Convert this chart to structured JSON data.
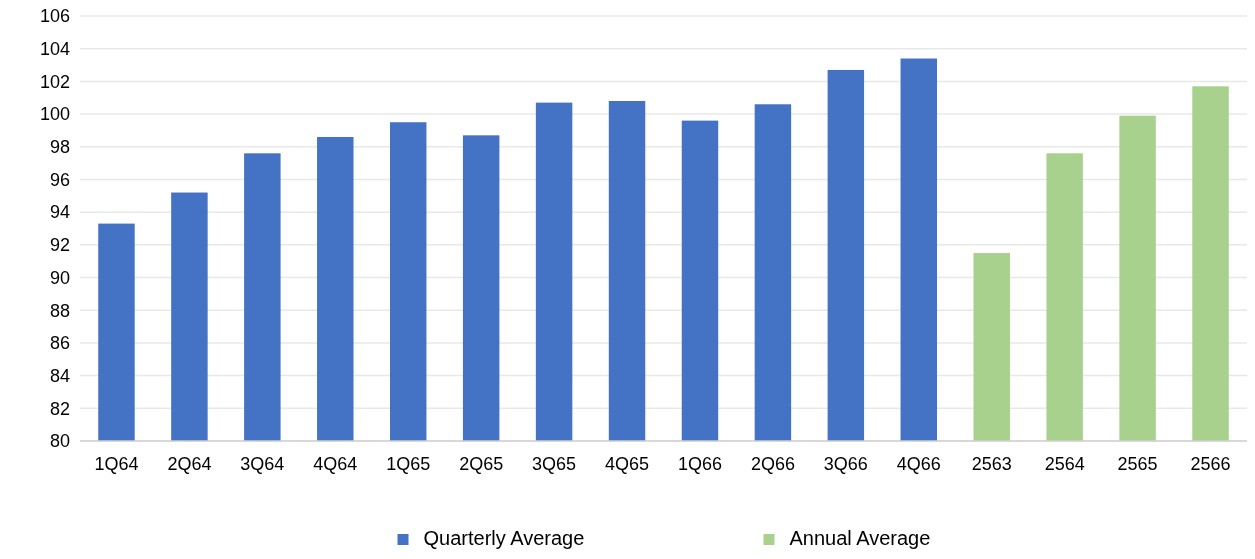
{
  "chart_data": {
    "type": "bar",
    "categories": [
      "1Q64",
      "2Q64",
      "3Q64",
      "4Q64",
      "1Q65",
      "2Q65",
      "3Q65",
      "4Q65",
      "1Q66",
      "2Q66",
      "3Q66",
      "4Q66",
      "2563",
      "2564",
      "2565",
      "2566"
    ],
    "series": [
      {
        "name": "Quarterly Average",
        "color": "#4472c4",
        "values": [
          93.3,
          95.2,
          97.6,
          98.6,
          99.5,
          98.7,
          100.7,
          100.8,
          99.6,
          100.6,
          102.7,
          103.4,
          null,
          null,
          null,
          null
        ]
      },
      {
        "name": "Annual Average",
        "color": "#a9d18e",
        "values": [
          null,
          null,
          null,
          null,
          null,
          null,
          null,
          null,
          null,
          null,
          null,
          null,
          91.5,
          97.6,
          99.9,
          101.7
        ]
      }
    ],
    "ylim": [
      80,
      106
    ],
    "yticks": [
      80,
      82,
      84,
      86,
      88,
      90,
      92,
      94,
      96,
      98,
      100,
      102,
      104,
      106
    ],
    "grid": "y",
    "legend": "bottom"
  }
}
